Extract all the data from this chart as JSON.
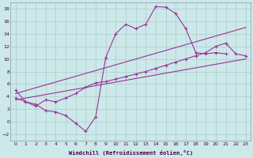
{
  "xlabel": "Windchill (Refroidissement éolien,°C)",
  "bg_color": "#cce8e8",
  "grid_color": "#aacccc",
  "line_color": "#993399",
  "xlim": [
    -0.5,
    23.5
  ],
  "ylim": [
    -3,
    19
  ],
  "xticks": [
    0,
    1,
    2,
    3,
    4,
    5,
    6,
    7,
    8,
    9,
    10,
    11,
    12,
    13,
    14,
    15,
    16,
    17,
    18,
    19,
    20,
    21,
    22,
    23
  ],
  "yticks": [
    -2,
    0,
    2,
    4,
    6,
    8,
    10,
    12,
    14,
    16,
    18
  ],
  "line1_x": [
    0,
    1,
    2,
    3,
    4,
    5,
    6,
    7,
    8,
    9,
    10,
    11,
    12,
    13,
    14,
    15,
    16,
    17,
    18,
    19,
    20,
    21
  ],
  "line1_y": [
    5.0,
    3.2,
    2.8,
    1.8,
    1.6,
    1.0,
    -0.2,
    -1.5,
    0.8,
    10.2,
    14.0,
    15.5,
    14.8,
    15.5,
    18.3,
    18.2,
    17.2,
    14.8,
    11.0,
    10.8,
    11.0,
    10.8
  ],
  "line2_x": [
    0,
    1,
    2,
    3,
    4,
    5,
    6,
    7,
    8,
    9,
    10,
    11,
    12,
    13,
    14,
    15,
    16,
    17,
    18,
    19,
    20,
    21,
    22,
    23
  ],
  "line2_y": [
    3.8,
    3.2,
    2.5,
    3.5,
    3.2,
    3.8,
    4.5,
    5.5,
    6.2,
    6.4,
    6.8,
    7.2,
    7.6,
    8.0,
    8.5,
    9.0,
    9.5,
    10.0,
    10.5,
    11.0,
    12.0,
    12.5,
    10.8,
    10.5
  ],
  "line3_x": [
    0,
    23
  ],
  "line3_y": [
    3.5,
    10.0
  ],
  "line4_x": [
    0,
    23
  ],
  "line4_y": [
    4.5,
    15.0
  ]
}
